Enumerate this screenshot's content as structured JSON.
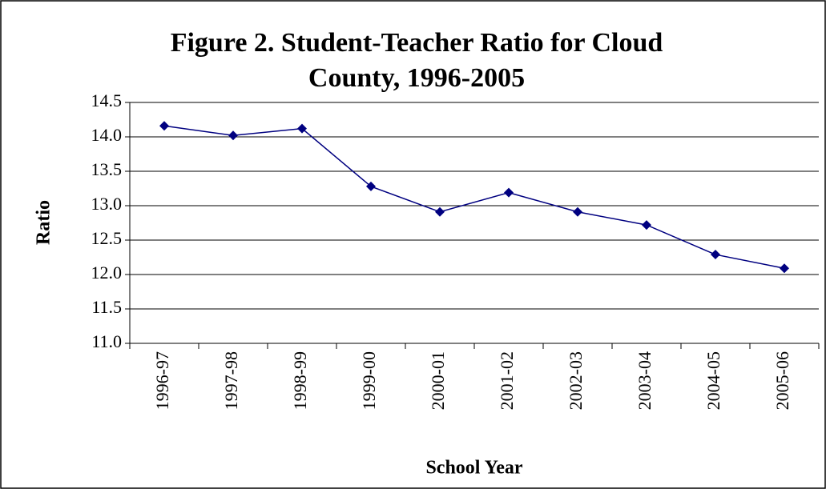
{
  "chart_data": {
    "type": "line",
    "title": [
      "Figure 2. Student-Teacher Ratio for Cloud",
      "County, 1996-2005"
    ],
    "x_label": "School Year",
    "y_label": "Ratio",
    "categories": [
      "1996-97",
      "1997-98",
      "1998-99",
      "1999-00",
      "2000-01",
      "2001-02",
      "2002-03",
      "2003-04",
      "2004-05",
      "2005-06"
    ],
    "series": [
      {
        "name": "Ratio",
        "color": "#000080",
        "values": [
          14.16,
          14.02,
          14.12,
          13.28,
          12.91,
          13.19,
          12.91,
          12.72,
          12.29,
          12.09
        ]
      }
    ],
    "ylim": [
      11,
      14.5
    ],
    "yticks": [
      {
        "value": 11,
        "label": "11.0"
      },
      11.5,
      {
        "value": 12,
        "label": "12.0"
      },
      12.5,
      {
        "value": 13,
        "label": "13.0"
      },
      13.5,
      {
        "value": 14,
        "label": "14.0"
      },
      14.5
    ],
    "grid": true,
    "legend": false
  }
}
